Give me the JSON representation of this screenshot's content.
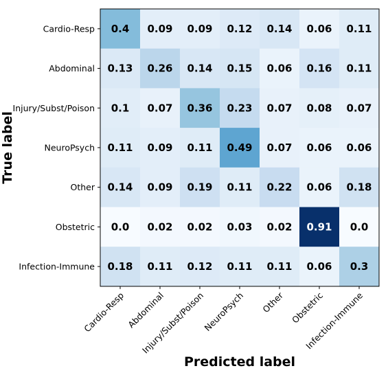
{
  "chart_data": {
    "type": "heatmap",
    "title": "",
    "xlabel": "Predicted label",
    "ylabel": "True label",
    "x_categories": [
      "Cardio-Resp",
      "Abdominal",
      "Injury/Subst/Poison",
      "NeuroPsych",
      "Other",
      "Obstetric",
      "Infection-Immune"
    ],
    "y_categories": [
      "Cardio-Resp",
      "Abdominal",
      "Injury/Subst/Poison",
      "NeuroPsych",
      "Other",
      "Obstetric",
      "Infection-Immune"
    ],
    "values": [
      [
        0.4,
        0.09,
        0.09,
        0.12,
        0.14,
        0.06,
        0.11
      ],
      [
        0.13,
        0.26,
        0.14,
        0.15,
        0.06,
        0.16,
        0.11
      ],
      [
        0.1,
        0.07,
        0.36,
        0.23,
        0.07,
        0.08,
        0.07
      ],
      [
        0.11,
        0.09,
        0.11,
        0.49,
        0.07,
        0.06,
        0.06
      ],
      [
        0.14,
        0.09,
        0.19,
        0.11,
        0.22,
        0.06,
        0.18
      ],
      [
        0.0,
        0.02,
        0.02,
        0.03,
        0.02,
        0.91,
        0.0
      ],
      [
        0.18,
        0.11,
        0.12,
        0.11,
        0.11,
        0.06,
        0.3
      ]
    ],
    "value_labels": [
      [
        "0.4",
        "0.09",
        "0.09",
        "0.12",
        "0.14",
        "0.06",
        "0.11"
      ],
      [
        "0.13",
        "0.26",
        "0.14",
        "0.15",
        "0.06",
        "0.16",
        "0.11"
      ],
      [
        "0.1",
        "0.07",
        "0.36",
        "0.23",
        "0.07",
        "0.08",
        "0.07"
      ],
      [
        "0.11",
        "0.09",
        "0.11",
        "0.49",
        "0.07",
        "0.06",
        "0.06"
      ],
      [
        "0.14",
        "0.09",
        "0.19",
        "0.11",
        "0.22",
        "0.06",
        "0.18"
      ],
      [
        "0.0",
        "0.02",
        "0.02",
        "0.03",
        "0.02",
        "0.91",
        "0.0"
      ],
      [
        "0.18",
        "0.11",
        "0.12",
        "0.11",
        "0.11",
        "0.06",
        "0.3"
      ]
    ],
    "colormap": "Blues",
    "text_color_dark": "#000000",
    "text_color_light": "#ffffff"
  }
}
